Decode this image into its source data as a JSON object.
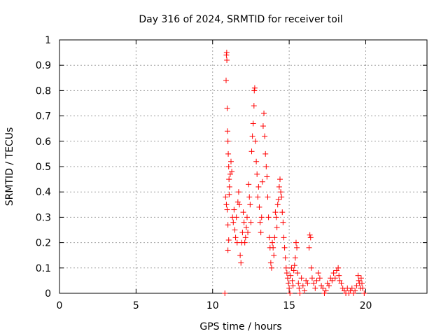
{
  "chart_data": {
    "type": "scatter",
    "title": "Day 316 of 2024, SRMTID for receiver toil",
    "xlabel": "GPS time / hours",
    "ylabel": "SRMTID / TECUs",
    "xlim": [
      0,
      24
    ],
    "ylim": [
      0,
      1
    ],
    "xticks": [
      0,
      5,
      10,
      15,
      20
    ],
    "yticks": [
      0,
      0.1,
      0.2,
      0.3,
      0.4,
      0.5,
      0.6,
      0.7,
      0.8,
      0.9,
      1
    ],
    "xtick_labels": [
      "0",
      "5",
      "10",
      "15",
      "20"
    ],
    "ytick_labels": [
      "0",
      "0.1",
      "0.2",
      "0.3",
      "0.4",
      "0.5",
      "0.6",
      "0.7",
      "0.8",
      "0.9",
      "1"
    ],
    "grid": true,
    "marker_color": "#ff0000",
    "marker": "plus",
    "series": [
      {
        "name": "SRMTID",
        "points": [
          [
            10.8,
            0.0
          ],
          [
            10.85,
            0.38
          ],
          [
            10.88,
            0.84
          ],
          [
            10.9,
            0.94
          ],
          [
            10.92,
            0.95
          ],
          [
            10.93,
            0.92
          ],
          [
            10.95,
            0.73
          ],
          [
            10.97,
            0.64
          ],
          [
            11.0,
            0.6
          ],
          [
            11.02,
            0.55
          ],
          [
            11.05,
            0.5
          ],
          [
            11.07,
            0.45
          ],
          [
            10.9,
            0.35
          ],
          [
            10.95,
            0.33
          ],
          [
            11.0,
            0.27
          ],
          [
            11.05,
            0.21
          ],
          [
            11.0,
            0.17
          ],
          [
            11.08,
            0.39
          ],
          [
            11.1,
            0.42
          ],
          [
            11.15,
            0.47
          ],
          [
            11.2,
            0.52
          ],
          [
            11.25,
            0.48
          ],
          [
            11.3,
            0.3
          ],
          [
            11.35,
            0.28
          ],
          [
            11.4,
            0.33
          ],
          [
            11.45,
            0.25
          ],
          [
            11.5,
            0.22
          ],
          [
            11.55,
            0.3
          ],
          [
            11.6,
            0.2
          ],
          [
            11.65,
            0.36
          ],
          [
            11.7,
            0.4
          ],
          [
            11.75,
            0.35
          ],
          [
            11.8,
            0.15
          ],
          [
            11.85,
            0.12
          ],
          [
            11.9,
            0.2
          ],
          [
            11.95,
            0.24
          ],
          [
            12.0,
            0.32
          ],
          [
            12.05,
            0.28
          ],
          [
            12.1,
            0.2
          ],
          [
            12.15,
            0.22
          ],
          [
            12.2,
            0.26
          ],
          [
            12.25,
            0.3
          ],
          [
            12.3,
            0.24
          ],
          [
            12.35,
            0.43
          ],
          [
            12.4,
            0.38
          ],
          [
            12.45,
            0.35
          ],
          [
            12.5,
            0.28
          ],
          [
            12.55,
            0.56
          ],
          [
            12.6,
            0.62
          ],
          [
            12.65,
            0.67
          ],
          [
            12.7,
            0.74
          ],
          [
            12.72,
            0.8
          ],
          [
            12.75,
            0.81
          ],
          [
            12.8,
            0.6
          ],
          [
            12.85,
            0.52
          ],
          [
            12.9,
            0.47
          ],
          [
            12.95,
            0.38
          ],
          [
            13.0,
            0.42
          ],
          [
            13.05,
            0.34
          ],
          [
            13.1,
            0.28
          ],
          [
            13.15,
            0.24
          ],
          [
            13.2,
            0.3
          ],
          [
            13.25,
            0.44
          ],
          [
            13.3,
            0.66
          ],
          [
            13.35,
            0.71
          ],
          [
            13.4,
            0.62
          ],
          [
            13.45,
            0.55
          ],
          [
            13.5,
            0.5
          ],
          [
            13.55,
            0.46
          ],
          [
            13.6,
            0.38
          ],
          [
            13.65,
            0.3
          ],
          [
            13.7,
            0.22
          ],
          [
            13.75,
            0.18
          ],
          [
            13.8,
            0.12
          ],
          [
            13.85,
            0.1
          ],
          [
            13.9,
            0.2
          ],
          [
            13.95,
            0.18
          ],
          [
            14.0,
            0.15
          ],
          [
            14.05,
            0.22
          ],
          [
            14.1,
            0.32
          ],
          [
            14.15,
            0.3
          ],
          [
            14.2,
            0.26
          ],
          [
            14.25,
            0.35
          ],
          [
            14.3,
            0.37
          ],
          [
            14.35,
            0.42
          ],
          [
            14.4,
            0.45
          ],
          [
            14.45,
            0.4
          ],
          [
            14.5,
            0.38
          ],
          [
            14.55,
            0.32
          ],
          [
            14.6,
            0.28
          ],
          [
            14.65,
            0.22
          ],
          [
            14.7,
            0.18
          ],
          [
            14.75,
            0.14
          ],
          [
            14.8,
            0.1
          ],
          [
            14.85,
            0.08
          ],
          [
            14.9,
            0.06
          ],
          [
            14.95,
            0.04
          ],
          [
            15.0,
            0.02
          ],
          [
            15.05,
            0.0
          ],
          [
            15.1,
            0.07
          ],
          [
            15.15,
            0.1
          ],
          [
            15.2,
            0.05
          ],
          [
            15.25,
            0.03
          ],
          [
            15.3,
            0.09
          ],
          [
            15.35,
            0.11
          ],
          [
            15.4,
            0.14
          ],
          [
            15.45,
            0.2
          ],
          [
            15.5,
            0.18
          ],
          [
            15.55,
            0.08
          ],
          [
            15.6,
            0.04
          ],
          [
            15.65,
            0.02
          ],
          [
            15.7,
            0.0
          ],
          [
            15.8,
            0.06
          ],
          [
            15.9,
            0.03
          ],
          [
            16.0,
            0.01
          ],
          [
            16.1,
            0.05
          ],
          [
            16.2,
            0.04
          ],
          [
            16.3,
            0.18
          ],
          [
            16.35,
            0.23
          ],
          [
            16.4,
            0.22
          ],
          [
            16.45,
            0.1
          ],
          [
            16.5,
            0.06
          ],
          [
            16.6,
            0.04
          ],
          [
            16.7,
            0.02
          ],
          [
            16.8,
            0.05
          ],
          [
            16.9,
            0.08
          ],
          [
            17.0,
            0.06
          ],
          [
            17.1,
            0.03
          ],
          [
            17.2,
            0.02
          ],
          [
            17.3,
            0.0
          ],
          [
            17.4,
            0.01
          ],
          [
            17.5,
            0.04
          ],
          [
            17.6,
            0.03
          ],
          [
            17.7,
            0.06
          ],
          [
            17.8,
            0.05
          ],
          [
            17.9,
            0.08
          ],
          [
            18.0,
            0.06
          ],
          [
            18.1,
            0.09
          ],
          [
            18.2,
            0.1
          ],
          [
            18.25,
            0.07
          ],
          [
            18.3,
            0.05
          ],
          [
            18.4,
            0.04
          ],
          [
            18.5,
            0.02
          ],
          [
            18.6,
            0.01
          ],
          [
            18.7,
            0.0
          ],
          [
            18.8,
            0.02
          ],
          [
            18.9,
            0.0
          ],
          [
            19.0,
            0.01
          ],
          [
            19.1,
            0.02
          ],
          [
            19.2,
            0.0
          ],
          [
            19.3,
            0.01
          ],
          [
            19.4,
            0.03
          ],
          [
            19.5,
            0.07
          ],
          [
            19.55,
            0.05
          ],
          [
            19.6,
            0.04
          ],
          [
            19.65,
            0.02
          ],
          [
            19.7,
            0.06
          ],
          [
            19.75,
            0.04
          ],
          [
            19.8,
            0.02
          ],
          [
            19.9,
            0.0
          ]
        ]
      }
    ]
  }
}
